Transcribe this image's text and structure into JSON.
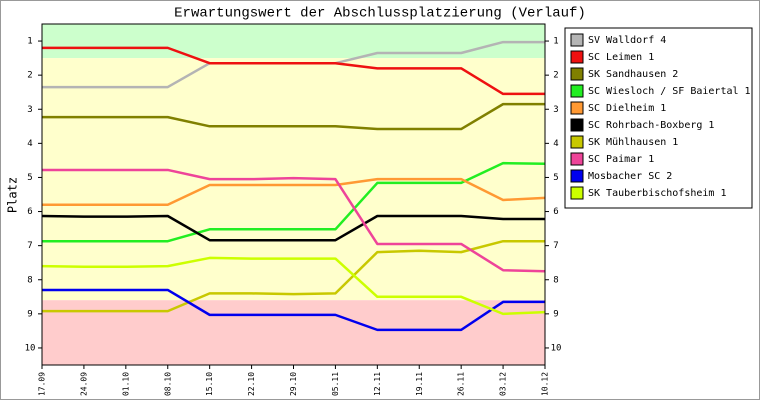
{
  "chart_data": {
    "type": "line",
    "title": "Erwartungswert der Abschlussplatzierung (Verlauf)",
    "y_label": "Platz",
    "categories": [
      "17.09",
      "24.09",
      "01.10",
      "08.10",
      "15.10",
      "22.10",
      "29.10",
      "05.11",
      "12.11",
      "19.11",
      "26.11",
      "03.12",
      "10.12"
    ],
    "ylim": [
      0.5,
      10.5
    ],
    "y_inverted": true,
    "yticks": [
      1,
      2,
      3,
      4,
      5,
      6,
      7,
      8,
      9,
      10
    ],
    "bands": [
      {
        "from": 0.5,
        "to": 1.5,
        "color": "#ccffcc"
      },
      {
        "from": 1.5,
        "to": 8.6,
        "color": "#ffffcc"
      },
      {
        "from": 8.6,
        "to": 10.5,
        "color": "#ffcccc"
      }
    ],
    "legend": "right",
    "series": [
      {
        "name": "SV Walldorf 4",
        "color": "#b4b4b4",
        "values": [
          2.35,
          2.35,
          2.35,
          2.35,
          1.65,
          1.65,
          1.65,
          1.65,
          1.35,
          1.35,
          1.35,
          1.03,
          1.03
        ]
      },
      {
        "name": "SC Leimen 1",
        "color": "#ee1111",
        "values": [
          1.2,
          1.2,
          1.2,
          1.2,
          1.65,
          1.65,
          1.65,
          1.65,
          1.8,
          1.8,
          1.8,
          2.55,
          2.55
        ]
      },
      {
        "name": "SK Sandhausen 2",
        "color": "#808000",
        "values": [
          3.23,
          3.23,
          3.23,
          3.23,
          3.5,
          3.5,
          3.5,
          3.5,
          3.58,
          3.58,
          3.58,
          2.85,
          2.85
        ]
      },
      {
        "name": "SC Wiesloch / SF Baiertal 1",
        "color": "#22ee22",
        "values": [
          6.87,
          6.87,
          6.87,
          6.87,
          6.52,
          6.52,
          6.52,
          6.52,
          5.16,
          5.16,
          5.16,
          4.58,
          4.6
        ]
      },
      {
        "name": "SC Dielheim 1",
        "color": "#ff9933",
        "values": [
          5.8,
          5.8,
          5.8,
          5.8,
          5.22,
          5.22,
          5.22,
          5.22,
          5.05,
          5.05,
          5.05,
          5.66,
          5.6
        ]
      },
      {
        "name": "SC Rohrbach-Boxberg 1",
        "color": "#000000",
        "values": [
          6.13,
          6.15,
          6.15,
          6.13,
          6.84,
          6.84,
          6.84,
          6.84,
          6.13,
          6.13,
          6.13,
          6.22,
          6.22
        ]
      },
      {
        "name": "SK Mühlhausen 1",
        "color": "#c8c800",
        "values": [
          8.92,
          8.92,
          8.92,
          8.92,
          8.4,
          8.4,
          8.42,
          8.4,
          7.19,
          7.15,
          7.19,
          6.87,
          6.87
        ]
      },
      {
        "name": "SC Paimar 1",
        "color": "#ee4499",
        "values": [
          4.78,
          4.78,
          4.78,
          4.78,
          5.05,
          5.05,
          5.02,
          5.05,
          6.95,
          6.95,
          6.95,
          7.72,
          7.75
        ]
      },
      {
        "name": "Mosbacher SC 2",
        "color": "#0000ee",
        "values": [
          8.3,
          8.3,
          8.3,
          8.3,
          9.03,
          9.03,
          9.03,
          9.03,
          9.47,
          9.47,
          9.47,
          8.65,
          8.65
        ]
      },
      {
        "name": "SK Tauberbischofsheim 1",
        "color": "#ccff00",
        "values": [
          7.6,
          7.62,
          7.62,
          7.6,
          7.36,
          7.38,
          7.38,
          7.38,
          8.5,
          8.5,
          8.5,
          9.0,
          8.95
        ]
      }
    ]
  }
}
